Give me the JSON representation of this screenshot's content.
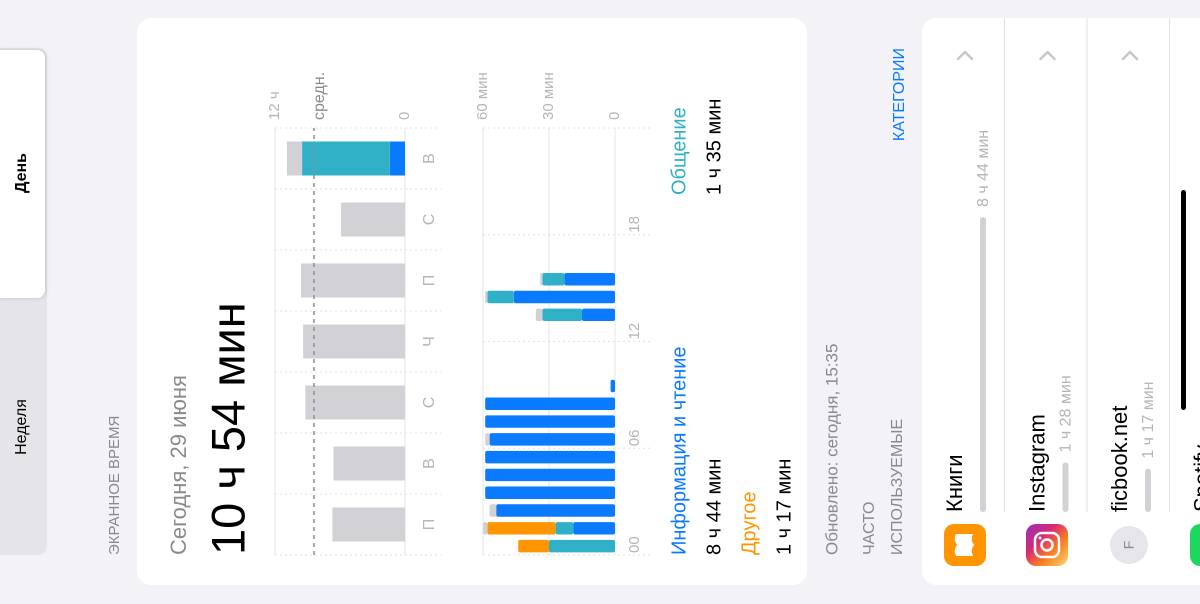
{
  "tabs": [
    "Неделя",
    "День"
  ],
  "section_title": "ЭКРАННОЕ ВРЕМЯ",
  "summary": {
    "date": "Сегодня, 29 июня",
    "total": "10 ч 54 мин"
  },
  "chart_data": [
    {
      "type": "bar",
      "stacked": true,
      "categories": [
        "П",
        "В",
        "С",
        "Ч",
        "П",
        "С",
        "В"
      ],
      "series": [
        {
          "color": "#0a7aff",
          "values": [
            0,
            0,
            0,
            0,
            0,
            0,
            1.4
          ]
        },
        {
          "color": "#30b0c7",
          "values": [
            0,
            0,
            0,
            0,
            0,
            0,
            8.1
          ]
        },
        {
          "color": "#d1d1d6",
          "values": [
            6.7,
            6.6,
            9.2,
            9.4,
            9.6,
            5.9,
            1.4
          ]
        }
      ],
      "ylim": [
        0,
        12
      ],
      "yticks": [
        {
          "value": 12,
          "label": "12 ч"
        },
        0
      ],
      "average": {
        "value": 8.4,
        "label": "средн."
      }
    },
    {
      "type": "bar",
      "stacked": true,
      "x": [
        0,
        1,
        2,
        3,
        4,
        5,
        6,
        7,
        8,
        9,
        10,
        11,
        12,
        13,
        14,
        15,
        16,
        17,
        18,
        19,
        20,
        21,
        22,
        23
      ],
      "xlim": [
        0,
        24
      ],
      "xticks": [
        {
          "value": 0,
          "label": "00"
        },
        {
          "value": 6,
          "label": "06"
        },
        {
          "value": 12,
          "label": "12"
        },
        {
          "value": 18,
          "label": "18"
        }
      ],
      "ylim": [
        0,
        60
      ],
      "yticks": [
        {
          "value": 60,
          "label": "60 мин"
        },
        {
          "value": 30,
          "label": "30 мин"
        },
        0
      ],
      "series": [
        {
          "name": "Информация и чтение",
          "color": "#0a7aff",
          "values": [
            0,
            19,
            54,
            59,
            59,
            59,
            57,
            59,
            59,
            2,
            0,
            0,
            0,
            15,
            46,
            23,
            0,
            0,
            0,
            0,
            0,
            0,
            0,
            0
          ]
        },
        {
          "name": "Общение",
          "color": "#30b0c7",
          "values": [
            30,
            8,
            0,
            0,
            0,
            0,
            0,
            0,
            0,
            0,
            0,
            0,
            0,
            18,
            12,
            10,
            0,
            0,
            0,
            0,
            0,
            0,
            0,
            0
          ]
        },
        {
          "name": "Другое",
          "color": "#ff9500",
          "values": [
            14,
            31,
            0,
            0,
            0,
            0,
            0,
            0,
            0,
            0,
            0,
            0,
            0,
            0,
            0,
            0,
            0,
            0,
            0,
            0,
            0,
            0,
            0,
            0
          ]
        },
        {
          "color": "#d1d1d6",
          "values": [
            0,
            2,
            3,
            0,
            0,
            0,
            2,
            0,
            0,
            0,
            0,
            0,
            0,
            3,
            1,
            1,
            0,
            0,
            0,
            0,
            0,
            0,
            0,
            0
          ]
        }
      ]
    }
  ],
  "category_totals": [
    "8 ч 44 мин",
    "1 ч 35 мин",
    "1 ч 17 мин"
  ],
  "updated": "Обновлено: сегодня, 15:35",
  "most_used": [
    "ЧАСТО",
    "ИСПОЛЬЗУЕМЫЕ"
  ],
  "categories_link": "КАТЕГОРИИ",
  "apps": [
    {
      "name": "Книги",
      "minutes": 524,
      "time": "8 ч 44 мин"
    },
    {
      "name": "Instagram",
      "minutes": 88,
      "time": "1 ч 28 мин"
    },
    {
      "name": "ficbook.net",
      "minutes": 77,
      "time": "1 ч 17 мин",
      "icon_letter": "F"
    },
    {
      "name": "Spotify"
    }
  ]
}
